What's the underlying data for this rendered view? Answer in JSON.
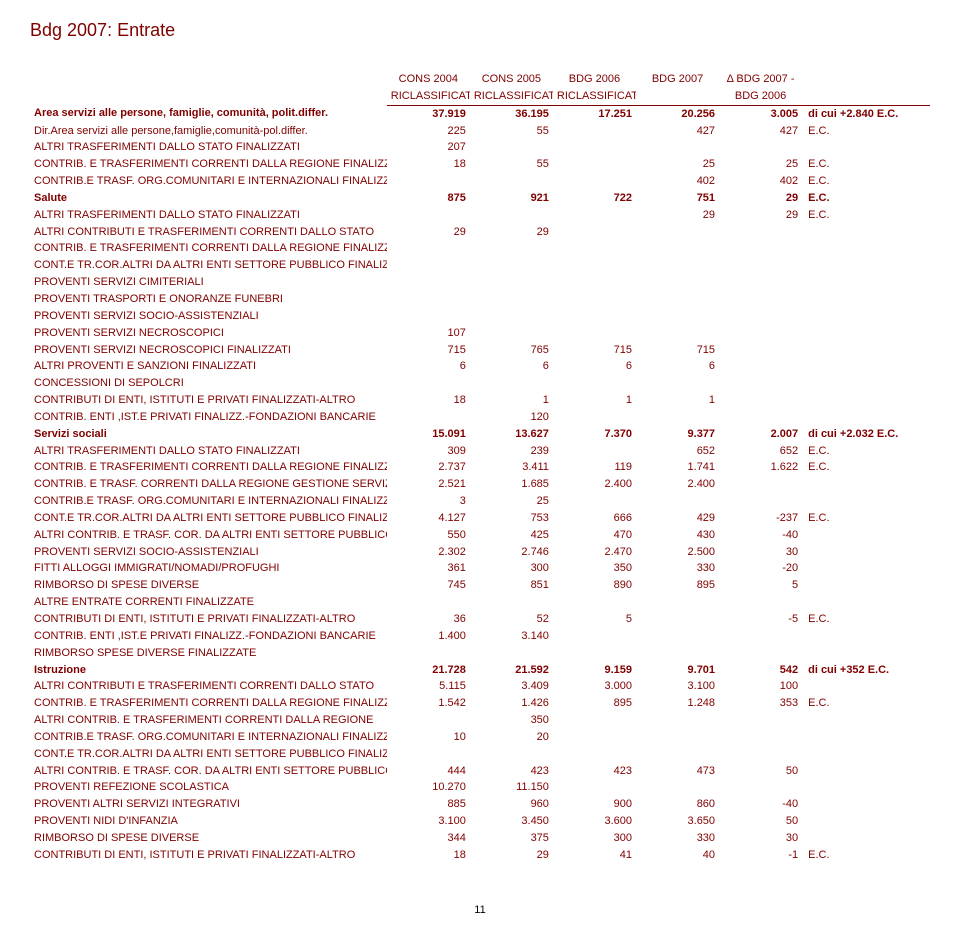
{
  "title": "Bdg 2007: Entrate",
  "page_number": "11",
  "header": {
    "top": [
      "",
      "CONS 2004",
      "CONS 2005",
      "BDG 2006",
      "BDG 2007",
      "Δ BDG 2007 -",
      ""
    ],
    "bot": [
      "",
      "RICLASSIFICATO",
      "RICLASSIFICATO",
      "RICLASSIFICATO",
      "",
      "BDG 2006",
      ""
    ]
  },
  "rows": [
    {
      "bold": true,
      "cells": [
        "Area servizi alle persone, famiglie, comunità, polit.differ.",
        "37.919",
        "36.195",
        "17.251",
        "20.256",
        "3.005",
        "di cui +2.840 E.C."
      ]
    },
    {
      "cells": [
        "Dir.Area servizi alle persone,famiglie,comunità-pol.differ.",
        "225",
        "55",
        "",
        "427",
        "427",
        "E.C."
      ]
    },
    {
      "cells": [
        "ALTRI TRASFERIMENTI DALLO STATO FINALIZZATI",
        "207",
        "",
        "",
        "",
        "",
        ""
      ]
    },
    {
      "cells": [
        "CONTRIB. E TRASFERIMENTI CORRENTI DALLA REGIONE FINALIZZATI",
        "18",
        "55",
        "",
        "25",
        "25",
        "E.C."
      ]
    },
    {
      "cells": [
        "CONTRIB.E TRASF. ORG.COMUNITARI E INTERNAZIONALI FINALIZZATI",
        "",
        "",
        "",
        "402",
        "402",
        "E.C."
      ]
    },
    {
      "bold": true,
      "cells": [
        "Salute",
        "875",
        "921",
        "722",
        "751",
        "29",
        "E.C."
      ]
    },
    {
      "cells": [
        "ALTRI TRASFERIMENTI DALLO STATO FINALIZZATI",
        "",
        "",
        "",
        "29",
        "29",
        "E.C."
      ]
    },
    {
      "cells": [
        "ALTRI CONTRIBUTI E TRASFERIMENTI CORRENTI DALLO STATO",
        "29",
        "29",
        "",
        "",
        "",
        ""
      ]
    },
    {
      "cells": [
        "CONTRIB. E TRASFERIMENTI CORRENTI DALLA REGIONE FINALIZZATI",
        "",
        "",
        "",
        "",
        "",
        ""
      ]
    },
    {
      "cells": [
        "CONT.E TR.COR.ALTRI DA ALTRI ENTI SETTORE PUBBLICO FINALIZZ.",
        "",
        "",
        "",
        "",
        "",
        ""
      ]
    },
    {
      "cells": [
        "PROVENTI SERVIZI CIMITERIALI",
        "",
        "",
        "",
        "",
        "",
        ""
      ]
    },
    {
      "cells": [
        "PROVENTI TRASPORTI E ONORANZE FUNEBRI",
        "",
        "",
        "",
        "",
        "",
        ""
      ]
    },
    {
      "cells": [
        "PROVENTI SERVIZI SOCIO-ASSISTENZIALI",
        "",
        "",
        "",
        "",
        "",
        ""
      ]
    },
    {
      "cells": [
        "PROVENTI SERVIZI NECROSCOPICI",
        "107",
        "",
        "",
        "",
        "",
        ""
      ]
    },
    {
      "cells": [
        "PROVENTI SERVIZI NECROSCOPICI FINALIZZATI",
        "715",
        "765",
        "715",
        "715",
        "",
        ""
      ]
    },
    {
      "cells": [
        "ALTRI PROVENTI E SANZIONI FINALIZZATI",
        "6",
        "6",
        "6",
        "6",
        "",
        ""
      ]
    },
    {
      "cells": [
        "CONCESSIONI DI SEPOLCRI",
        "",
        "",
        "",
        "",
        "",
        ""
      ]
    },
    {
      "cells": [
        "CONTRIBUTI DI ENTI, ISTITUTI E PRIVATI FINALIZZATI-ALTRO",
        "18",
        "1",
        "1",
        "1",
        "",
        ""
      ]
    },
    {
      "cells": [
        "CONTRIB. ENTI ,IST.E PRIVATI FINALIZZ.-FONDAZIONI BANCARIE",
        "",
        "120",
        "",
        "",
        "",
        ""
      ]
    },
    {
      "bold": true,
      "cells": [
        "Servizi sociali",
        "15.091",
        "13.627",
        "7.370",
        "9.377",
        "2.007",
        "di cui +2.032 E.C."
      ]
    },
    {
      "cells": [
        "ALTRI TRASFERIMENTI DALLO STATO FINALIZZATI",
        "309",
        "239",
        "",
        "652",
        "652",
        "E.C."
      ]
    },
    {
      "cells": [
        "CONTRIB. E TRASFERIMENTI CORRENTI DALLA REGIONE FINALIZZATI",
        "2.737",
        "3.411",
        "119",
        "1.741",
        "1.622",
        "E.C."
      ]
    },
    {
      "cells": [
        "CONTRIB. E TRASF. CORRENTI DALLA REGIONE GESTIONE SERVIZI",
        "2.521",
        "1.685",
        "2.400",
        "2.400",
        "",
        ""
      ]
    },
    {
      "cells": [
        "CONTRIB.E TRASF. ORG.COMUNITARI E INTERNAZIONALI FINALIZZATI",
        "3",
        "25",
        "",
        "",
        "",
        ""
      ]
    },
    {
      "cells": [
        "CONT.E TR.COR.ALTRI DA ALTRI ENTI SETTORE PUBBLICO FINALIZZ.",
        "4.127",
        "753",
        "666",
        "429",
        "-237",
        "E.C."
      ]
    },
    {
      "cells": [
        "ALTRI CONTRIB. E TRASF. COR. DA ALTRI ENTI SETTORE PUBBLICO",
        "550",
        "425",
        "470",
        "430",
        "-40",
        ""
      ]
    },
    {
      "cells": [
        "PROVENTI SERVIZI SOCIO-ASSISTENZIALI",
        "2.302",
        "2.746",
        "2.470",
        "2.500",
        "30",
        ""
      ]
    },
    {
      "cells": [
        "FITTI ALLOGGI IMMIGRATI/NOMADI/PROFUGHI",
        "361",
        "300",
        "350",
        "330",
        "-20",
        ""
      ]
    },
    {
      "cells": [
        "RIMBORSO DI SPESE DIVERSE",
        "745",
        "851",
        "890",
        "895",
        "5",
        ""
      ]
    },
    {
      "cells": [
        "ALTRE ENTRATE CORRENTI FINALIZZATE",
        "",
        "",
        "",
        "",
        "",
        ""
      ]
    },
    {
      "cells": [
        "CONTRIBUTI DI ENTI, ISTITUTI E PRIVATI FINALIZZATI-ALTRO",
        "36",
        "52",
        "5",
        "",
        "-5",
        "E.C."
      ]
    },
    {
      "cells": [
        "CONTRIB. ENTI ,IST.E PRIVATI FINALIZZ.-FONDAZIONI BANCARIE",
        "1.400",
        "3.140",
        "",
        "",
        "",
        ""
      ]
    },
    {
      "cells": [
        "RIMBORSO SPESE DIVERSE FINALIZZATE",
        "",
        "",
        "",
        "",
        "",
        ""
      ]
    },
    {
      "bold": true,
      "cells": [
        "Istruzione",
        "21.728",
        "21.592",
        "9.159",
        "9.701",
        "542",
        "di cui +352 E.C."
      ]
    },
    {
      "cells": [
        "ALTRI CONTRIBUTI E TRASFERIMENTI CORRENTI DALLO STATO",
        "5.115",
        "3.409",
        "3.000",
        "3.100",
        "100",
        ""
      ]
    },
    {
      "cells": [
        "CONTRIB. E TRASFERIMENTI CORRENTI DALLA REGIONE FINALIZZATI",
        "1.542",
        "1.426",
        "895",
        "1.248",
        "353",
        "E.C."
      ]
    },
    {
      "cells": [
        "ALTRI CONTRIB. E TRASFERIMENTI CORRENTI DALLA REGIONE",
        "",
        "350",
        "",
        "",
        "",
        ""
      ]
    },
    {
      "cells": [
        "CONTRIB.E TRASF. ORG.COMUNITARI E INTERNAZIONALI FINALIZZATI",
        "10",
        "20",
        "",
        "",
        "",
        ""
      ]
    },
    {
      "cells": [
        "CONT.E TR.COR.ALTRI DA ALTRI ENTI SETTORE PUBBLICO FINALIZZ.",
        "",
        "",
        "",
        "",
        "",
        ""
      ]
    },
    {
      "cells": [
        "ALTRI CONTRIB. E TRASF. COR. DA ALTRI ENTI SETTORE PUBBLICO",
        "444",
        "423",
        "423",
        "473",
        "50",
        ""
      ]
    },
    {
      "cells": [
        "PROVENTI REFEZIONE SCOLASTICA",
        "10.270",
        "11.150",
        "",
        "",
        "",
        ""
      ]
    },
    {
      "cells": [
        "PROVENTI ALTRI SERVIZI INTEGRATIVI",
        "885",
        "960",
        "900",
        "860",
        "-40",
        ""
      ]
    },
    {
      "cells": [
        "PROVENTI NIDI D'INFANZIA",
        "3.100",
        "3.450",
        "3.600",
        "3.650",
        "50",
        ""
      ]
    },
    {
      "cells": [
        "RIMBORSO DI SPESE DIVERSE",
        "344",
        "375",
        "300",
        "330",
        "30",
        ""
      ]
    },
    {
      "cells": [
        "CONTRIBUTI DI ENTI, ISTITUTI E PRIVATI FINALIZZATI-ALTRO",
        "18",
        "29",
        "41",
        "40",
        "-1",
        "E.C."
      ]
    }
  ]
}
